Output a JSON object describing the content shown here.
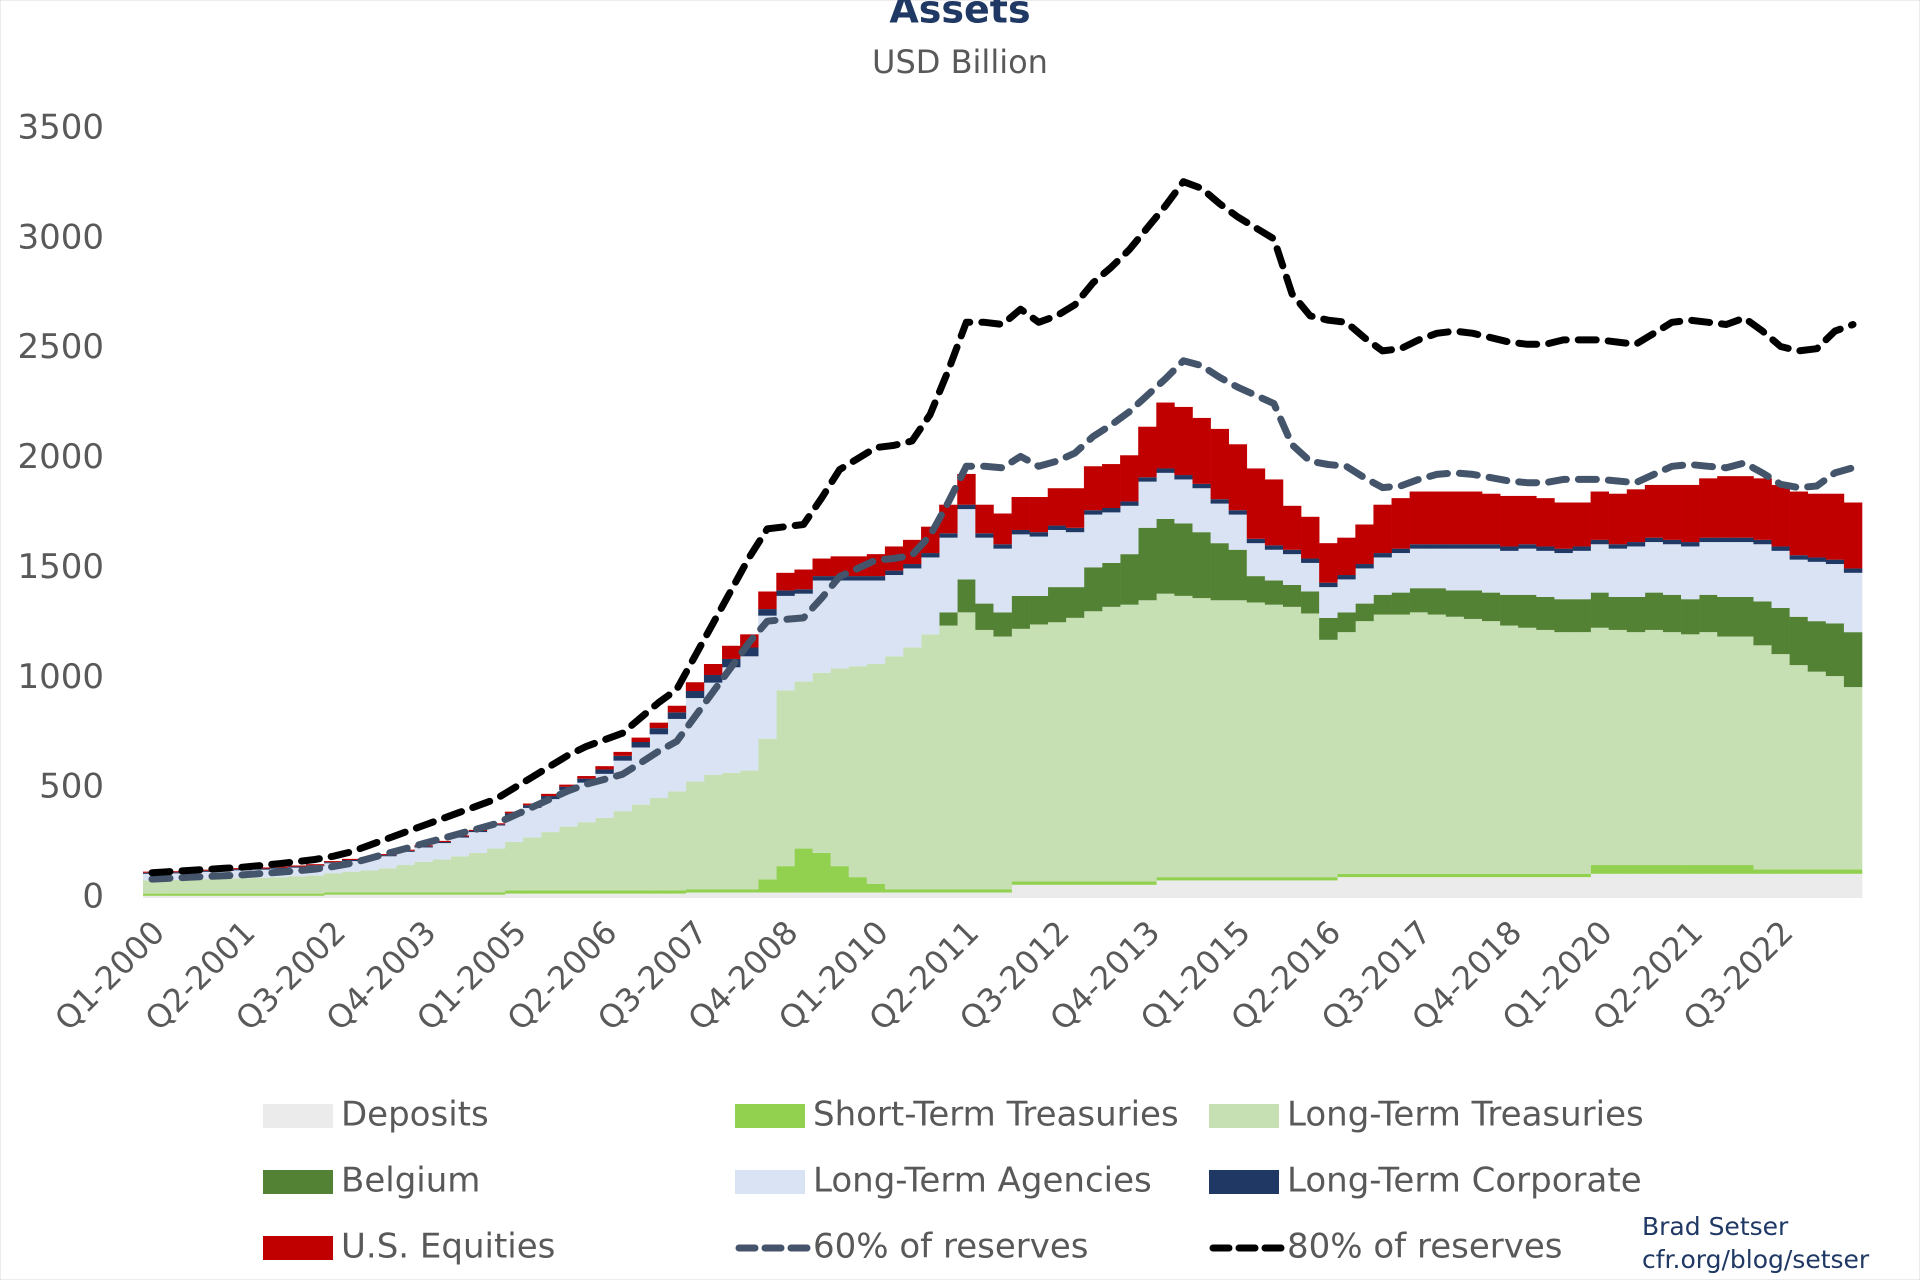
{
  "chart_data": {
    "type": "stacked_bar_line",
    "title": "Assets",
    "subtitle": "USD Billion",
    "note": [
      "Brad Setser",
      "cfr.org/blog/setser"
    ],
    "categories": [
      "Q1-2000",
      null,
      null,
      null,
      null,
      "Q2-2001",
      null,
      null,
      null,
      null,
      "Q3-2002",
      null,
      null,
      null,
      null,
      "Q4-2003",
      null,
      null,
      null,
      null,
      "Q1-2005",
      null,
      null,
      null,
      null,
      "Q2-2006",
      null,
      null,
      null,
      null,
      "Q3-2007",
      null,
      null,
      null,
      null,
      "Q4-2008",
      null,
      null,
      null,
      null,
      "Q1-2010",
      null,
      null,
      null,
      null,
      "Q2-2011",
      null,
      null,
      null,
      null,
      "Q3-2012",
      null,
      null,
      null,
      null,
      "Q4-2013",
      null,
      null,
      null,
      null,
      "Q1-2015",
      null,
      null,
      null,
      null,
      "Q2-2016",
      null,
      null,
      null,
      null,
      "Q3-2017",
      null,
      null,
      null,
      null,
      "Q4-2018",
      null,
      null,
      null,
      null,
      "Q1-2020",
      null,
      null,
      null,
      null,
      "Q2-2021",
      null,
      null,
      null,
      null,
      "Q3-2022",
      null,
      null,
      null,
      null
    ],
    "ylim": [
      0,
      3500
    ],
    "yticks": [
      0,
      500,
      1000,
      1500,
      2000,
      2500,
      3000,
      3500
    ],
    "grid": false,
    "series": [
      {
        "name": "Deposits",
        "type": "bar",
        "color": "#ebebeb",
        "values": [
          10,
          10,
          10,
          10,
          10,
          10,
          10,
          10,
          10,
          10,
          15,
          15,
          15,
          15,
          15,
          15,
          15,
          15,
          15,
          15,
          20,
          20,
          20,
          20,
          20,
          20,
          20,
          20,
          20,
          20,
          25,
          25,
          25,
          25,
          25,
          25,
          25,
          25,
          25,
          25,
          25,
          25,
          25,
          25,
          25,
          25,
          25,
          25,
          60,
          60,
          60,
          60,
          60,
          60,
          60,
          60,
          80,
          80,
          80,
          80,
          80,
          80,
          80,
          80,
          80,
          80,
          95,
          95,
          95,
          95,
          95,
          95,
          95,
          95,
          95,
          95,
          95,
          95,
          95,
          95,
          110,
          110,
          110,
          110,
          110,
          110,
          110,
          110,
          110,
          110,
          110,
          110,
          110,
          110,
          110
        ]
      },
      {
        "name": "Short-Term Treasuries",
        "type": "bar",
        "color": "#92d050",
        "values": [
          10,
          10,
          10,
          10,
          10,
          10,
          10,
          10,
          10,
          10,
          10,
          10,
          10,
          10,
          10,
          10,
          10,
          10,
          10,
          10,
          15,
          15,
          15,
          15,
          15,
          15,
          15,
          15,
          15,
          15,
          15,
          15,
          15,
          15,
          60,
          120,
          200,
          180,
          120,
          70,
          40,
          15,
          15,
          15,
          15,
          15,
          15,
          15,
          15,
          15,
          15,
          15,
          15,
          15,
          15,
          15,
          15,
          15,
          15,
          15,
          15,
          15,
          15,
          15,
          15,
          15,
          15,
          15,
          15,
          15,
          15,
          15,
          15,
          15,
          15,
          15,
          15,
          15,
          15,
          15,
          40,
          40,
          40,
          40,
          40,
          40,
          40,
          40,
          40,
          20,
          20,
          20,
          20,
          20,
          20
        ]
      },
      {
        "name": "Long-Term Treasuries",
        "type": "bar",
        "color": "#c6e0b4",
        "values": [
          60,
          62,
          64,
          66,
          68,
          70,
          72,
          75,
          78,
          82,
          88,
          95,
          100,
          110,
          125,
          140,
          150,
          165,
          180,
          200,
          220,
          240,
          265,
          290,
          310,
          330,
          360,
          390,
          420,
          450,
          490,
          520,
          530,
          540,
          640,
          800,
          760,
          820,
          900,
          960,
          1000,
          1060,
          1100,
          1160,
          1200,
          1260,
          1180,
          1150,
          1150,
          1170,
          1180,
          1200,
          1230,
          1250,
          1260,
          1280,
          1290,
          1280,
          1270,
          1260,
          1260,
          1250,
          1240,
          1230,
          1200,
          1080,
          1100,
          1150,
          1180,
          1180,
          1190,
          1180,
          1170,
          1160,
          1150,
          1130,
          1120,
          1110,
          1100,
          1100,
          1080,
          1070,
          1060,
          1070,
          1060,
          1050,
          1060,
          1040,
          1040,
          1020,
          980,
          930,
          900,
          880,
          830
        ]
      },
      {
        "name": "Belgium",
        "type": "bar",
        "color": "#548235",
        "values": [
          0,
          0,
          0,
          0,
          0,
          0,
          0,
          0,
          0,
          0,
          0,
          0,
          0,
          0,
          0,
          0,
          0,
          0,
          0,
          0,
          0,
          0,
          0,
          0,
          0,
          0,
          0,
          0,
          0,
          0,
          0,
          0,
          0,
          0,
          0,
          0,
          0,
          0,
          0,
          0,
          0,
          0,
          0,
          0,
          60,
          150,
          120,
          110,
          150,
          130,
          160,
          140,
          200,
          200,
          230,
          330,
          340,
          330,
          300,
          260,
          230,
          120,
          110,
          100,
          100,
          100,
          90,
          80,
          90,
          100,
          110,
          120,
          120,
          130,
          130,
          140,
          150,
          150,
          150,
          150,
          160,
          150,
          160,
          170,
          170,
          160,
          170,
          180,
          180,
          200,
          210,
          220,
          230,
          240,
          250
        ]
      },
      {
        "name": "Long-Term Agencies",
        "type": "bar",
        "color": "#dae3f3",
        "values": [
          30,
          30,
          32,
          33,
          35,
          36,
          37,
          38,
          40,
          42,
          45,
          48,
          50,
          55,
          60,
          65,
          75,
          85,
          95,
          105,
          120,
          135,
          150,
          165,
          180,
          200,
          230,
          260,
          290,
          330,
          380,
          420,
          480,
          520,
          560,
          430,
          400,
          420,
          400,
          390,
          380,
          370,
          360,
          350,
          340,
          320,
          300,
          290,
          280,
          270,
          260,
          250,
          240,
          230,
          220,
          210,
          210,
          200,
          200,
          180,
          160,
          150,
          140,
          140,
          130,
          140,
          150,
          160,
          170,
          180,
          180,
          180,
          190,
          190,
          200,
          200,
          210,
          210,
          210,
          220,
          220,
          220,
          230,
          230,
          230,
          240,
          240,
          250,
          250,
          260,
          260,
          260,
          270,
          270,
          270
        ]
      },
      {
        "name": "Long-Term Corporate",
        "type": "bar",
        "color": "#203864",
        "values": [
          5,
          5,
          5,
          5,
          5,
          5,
          5,
          5,
          5,
          5,
          5,
          5,
          5,
          5,
          5,
          5,
          5,
          5,
          5,
          5,
          10,
          12,
          14,
          16,
          18,
          20,
          22,
          25,
          28,
          30,
          32,
          35,
          38,
          40,
          30,
          25,
          20,
          20,
          20,
          20,
          20,
          20,
          20,
          20,
          20,
          20,
          20,
          20,
          20,
          20,
          20,
          20,
          20,
          20,
          20,
          20,
          20,
          20,
          20,
          20,
          20,
          20,
          20,
          20,
          20,
          20,
          20,
          20,
          20,
          20,
          20,
          20,
          20,
          20,
          20,
          20,
          20,
          20,
          20,
          20,
          20,
          20,
          20,
          20,
          20,
          20,
          20,
          20,
          20,
          20,
          20,
          20,
          20,
          20,
          20
        ]
      },
      {
        "name": "U.S. Equities",
        "type": "bar",
        "color": "#c00000",
        "values": [
          5,
          5,
          5,
          5,
          5,
          5,
          5,
          5,
          5,
          5,
          5,
          5,
          5,
          5,
          5,
          5,
          5,
          5,
          5,
          5,
          8,
          8,
          10,
          10,
          12,
          15,
          18,
          20,
          25,
          30,
          40,
          50,
          60,
          60,
          80,
          80,
          90,
          80,
          90,
          90,
          100,
          110,
          110,
          120,
          130,
          140,
          130,
          140,
          150,
          160,
          170,
          180,
          200,
          200,
          210,
          230,
          300,
          310,
          300,
          320,
          300,
          320,
          300,
          200,
          190,
          180,
          170,
          180,
          220,
          230,
          240,
          240,
          240,
          240,
          230,
          230,
          220,
          220,
          210,
          200,
          220,
          230,
          240,
          240,
          250,
          260,
          270,
          280,
          280,
          280,
          280,
          290,
          290,
          300,
          300
        ]
      },
      {
        "name": "60% of reserves",
        "type": "line",
        "color": "#44546a",
        "values": [
          86,
          90,
          94,
          98,
          101,
          105,
          111,
          117,
          124,
          131,
          143,
          158,
          180,
          203,
          225,
          248,
          270,
          293,
          315,
          338,
          375,
          413,
          450,
          488,
          518,
          540,
          563,
          615,
          668,
          713,
          825,
          938,
          1050,
          1163,
          1260,
          1268,
          1275,
          1365,
          1463,
          1500,
          1538,
          1545,
          1560,
          1650,
          1800,
          1965,
          1965,
          1958,
          2010,
          1965,
          1988,
          2025,
          2100,
          2153,
          2213,
          2288,
          2363,
          2445,
          2423,
          2370,
          2325,
          2288,
          2250,
          2063,
          1988,
          1973,
          1965,
          1913,
          1868,
          1875,
          1905,
          1928,
          1935,
          1928,
          1913,
          1898,
          1890,
          1890,
          1905,
          1905,
          1905,
          1898,
          1890,
          1928,
          1965,
          1973,
          1965,
          1958,
          1980,
          1935,
          1883,
          1868,
          1875,
          1935,
          1958
        ]
      },
      {
        "name": "80% of reserves",
        "type": "line",
        "color": "#000000",
        "values": [
          115,
          120,
          125,
          130,
          135,
          140,
          148,
          156,
          165,
          175,
          190,
          210,
          240,
          270,
          300,
          330,
          360,
          390,
          420,
          450,
          500,
          550,
          600,
          650,
          690,
          720,
          750,
          820,
          890,
          950,
          1100,
          1250,
          1400,
          1550,
          1680,
          1690,
          1700,
          1820,
          1950,
          2000,
          2050,
          2060,
          2080,
          2200,
          2400,
          2620,
          2620,
          2610,
          2680,
          2620,
          2650,
          2700,
          2800,
          2870,
          2950,
          3050,
          3150,
          3260,
          3230,
          3160,
          3100,
          3050,
          3000,
          2750,
          2650,
          2630,
          2620,
          2550,
          2490,
          2500,
          2540,
          2570,
          2580,
          2570,
          2550,
          2530,
          2520,
          2520,
          2540,
          2540,
          2540,
          2530,
          2520,
          2570,
          2620,
          2630,
          2620,
          2610,
          2640,
          2580,
          2510,
          2490,
          2500,
          2580,
          2610
        ]
      }
    ]
  }
}
